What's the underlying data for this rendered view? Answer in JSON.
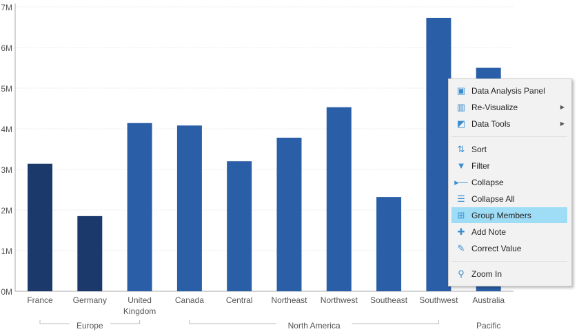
{
  "chart_data": {
    "type": "bar",
    "categories": [
      "France",
      "Germany",
      "United Kingdom",
      "Canada",
      "Central",
      "Northeast",
      "Northwest",
      "Southeast",
      "Southwest",
      "Australia"
    ],
    "category_lines": [
      [
        "France"
      ],
      [
        "Germany"
      ],
      [
        "United",
        "Kingdom"
      ],
      [
        "Canada"
      ],
      [
        "Central"
      ],
      [
        "Northeast"
      ],
      [
        "Northwest"
      ],
      [
        "Southeast"
      ],
      [
        "Southwest"
      ],
      [
        "Australia"
      ]
    ],
    "values": [
      3.14,
      1.85,
      4.14,
      4.08,
      3.2,
      3.78,
      4.53,
      2.32,
      6.73,
      5.5
    ],
    "highlighted": [
      true,
      true,
      false,
      false,
      false,
      false,
      false,
      false,
      false,
      false
    ],
    "groups": [
      {
        "name": "Europe",
        "from": 0,
        "to": 2
      },
      {
        "name": "North America",
        "from": 3,
        "to": 8
      },
      {
        "name": "Pacific",
        "from": 9,
        "to": 9
      }
    ],
    "yticks": [
      "0M",
      "1M",
      "2M",
      "3M",
      "4M",
      "5M",
      "6M",
      "7M"
    ],
    "ylim": [
      0,
      7
    ],
    "grid": true,
    "colors": {
      "selected": "#1b3a6b",
      "normal": "#2a5fa8"
    }
  },
  "menu": {
    "items": [
      {
        "label": "Data Analysis Panel",
        "icon": "data-analysis-icon",
        "glyph": "▣",
        "submenu": false
      },
      {
        "label": "Re-Visualize",
        "icon": "revisualize-icon",
        "glyph": "▥",
        "submenu": true
      },
      {
        "label": "Data Tools",
        "icon": "data-tools-icon",
        "glyph": "◩",
        "submenu": true
      },
      {
        "label": "Sort",
        "icon": "sort-icon",
        "glyph": "⇅",
        "submenu": false
      },
      {
        "label": "Filter",
        "icon": "filter-icon",
        "glyph": "▼",
        "submenu": false
      },
      {
        "label": "Collapse",
        "icon": "collapse-icon",
        "glyph": "▸—",
        "submenu": false
      },
      {
        "label": "Collapse All",
        "icon": "collapse-all-icon",
        "glyph": "☰",
        "submenu": false
      },
      {
        "label": "Group Members",
        "icon": "group-members-icon",
        "glyph": "⊞",
        "submenu": false
      },
      {
        "label": "Add Note",
        "icon": "add-note-icon",
        "glyph": "✚",
        "submenu": false
      },
      {
        "label": "Correct Value",
        "icon": "correct-value-icon",
        "glyph": "✎",
        "submenu": false
      },
      {
        "label": "Zoom In",
        "icon": "zoom-in-icon",
        "glyph": "⚲",
        "submenu": false
      }
    ],
    "highlighted": "Group Members",
    "submenu_arrow": "▶"
  }
}
